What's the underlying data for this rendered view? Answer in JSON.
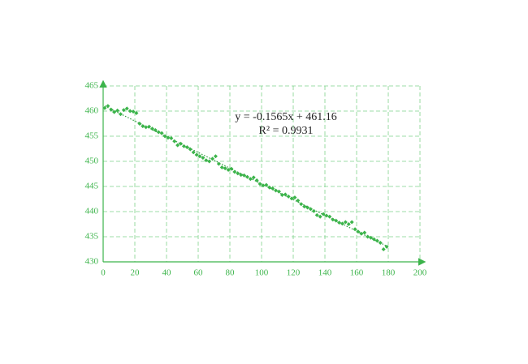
{
  "chart_data": {
    "type": "scatter",
    "annotations": [
      "y = -0.1565x + 461.16",
      "R² = 0.9931"
    ],
    "x": [
      1,
      3,
      5,
      7,
      9,
      11,
      13,
      15,
      17,
      19,
      21,
      23,
      25,
      27,
      29,
      31,
      33,
      35,
      37,
      39,
      41,
      43,
      45,
      47,
      49,
      51,
      53,
      55,
      57,
      59,
      61,
      63,
      65,
      67,
      69,
      71,
      73,
      75,
      77,
      79,
      81,
      83,
      85,
      87,
      89,
      91,
      93,
      95,
      97,
      99,
      101,
      103,
      105,
      107,
      109,
      111,
      113,
      115,
      117,
      119,
      121,
      123,
      125,
      127,
      129,
      131,
      133,
      135,
      137,
      139,
      141,
      143,
      145,
      147,
      149,
      151,
      153,
      155,
      157,
      159,
      161,
      163,
      165,
      167,
      169,
      171,
      173,
      175,
      177,
      179
    ],
    "values": [
      460.6,
      461.0,
      460.3,
      459.8,
      460.1,
      459.4,
      460.2,
      460.5,
      460.0,
      459.9,
      459.6,
      457.5,
      457.0,
      456.8,
      456.9,
      456.5,
      456.2,
      455.8,
      455.6,
      455.0,
      454.7,
      454.6,
      454.0,
      453.2,
      453.5,
      453.0,
      452.8,
      452.4,
      451.8,
      451.3,
      451.0,
      450.7,
      450.2,
      450.0,
      450.5,
      451.0,
      449.5,
      448.8,
      448.6,
      448.3,
      448.5,
      447.9,
      447.6,
      447.3,
      447.2,
      446.9,
      446.5,
      446.8,
      446.2,
      445.5,
      445.2,
      445.3,
      444.8,
      444.6,
      444.2,
      444.0,
      443.3,
      443.4,
      443.0,
      442.6,
      442.8,
      442.2,
      441.5,
      441.0,
      440.8,
      440.5,
      440.1,
      439.3,
      439.0,
      439.5,
      439.2,
      439.0,
      438.4,
      438.2,
      437.8,
      437.6,
      437.9,
      437.5,
      437.9,
      436.5,
      436.0,
      435.6,
      435.8,
      435.0,
      434.8,
      434.5,
      434.2,
      433.8,
      432.5,
      433.0
    ],
    "color": "#3cb44b",
    "trendline": {
      "slope": -0.1565,
      "intercept": 461.16
    },
    "xlim": [
      0,
      200
    ],
    "ylim": [
      430,
      465
    ],
    "xticks": [
      0,
      20,
      40,
      60,
      80,
      100,
      120,
      140,
      160,
      180,
      200
    ],
    "yticks": [
      430,
      435,
      440,
      445,
      450,
      455,
      460,
      465
    ],
    "grid": true
  }
}
